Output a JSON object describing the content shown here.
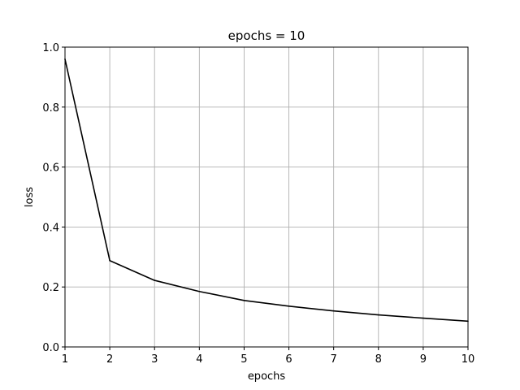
{
  "chart_data": {
    "type": "line",
    "title": "epochs = 10",
    "xlabel": "epochs",
    "ylabel": "loss",
    "x": [
      1,
      2,
      3,
      4,
      5,
      6,
      7,
      8,
      9,
      10
    ],
    "series": [
      {
        "values": [
          0.96,
          0.288,
          0.222,
          0.185,
          0.155,
          0.136,
          0.12,
          0.107,
          0.096,
          0.086
        ],
        "color": "#000000"
      }
    ],
    "xlim": [
      1,
      10
    ],
    "ylim": [
      0,
      1
    ],
    "xticks": [
      "1",
      "2",
      "3",
      "4",
      "5",
      "6",
      "7",
      "8",
      "9",
      "10"
    ],
    "yticks": [
      "0.0",
      "0.2",
      "0.4",
      "0.6",
      "0.8",
      "1.0"
    ],
    "grid": true,
    "grid_color": "#b0b0b0",
    "legend": "none"
  }
}
